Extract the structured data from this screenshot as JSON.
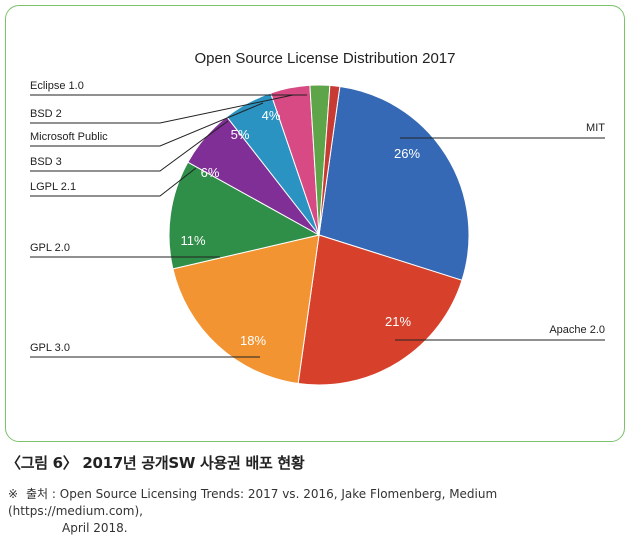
{
  "chart_data": {
    "type": "pie",
    "title": "Open Source License Distribution 2017",
    "slices": [
      {
        "label": "MIT",
        "value": 26,
        "value_label": "26%",
        "color": "#3569b5"
      },
      {
        "label": "Apache 2.0",
        "value": 21,
        "value_label": "21%",
        "color": "#d7412b"
      },
      {
        "label": "GPL 3.0",
        "value": 18,
        "value_label": "18%",
        "color": "#f39433"
      },
      {
        "label": "GPL 2.0",
        "value": 11,
        "value_label": "11%",
        "color": "#2f8e47"
      },
      {
        "label": "LGPL 2.1",
        "value": 6,
        "value_label": "6%",
        "color": "#7f2f96"
      },
      {
        "label": "BSD 3",
        "value": 5,
        "value_label": "5%",
        "color": "#2b93c1"
      },
      {
        "label": "Microsoft Public",
        "value": 4,
        "value_label": "4%",
        "color": "#d74a83"
      },
      {
        "label": "BSD 2",
        "value": 2,
        "value_label": "",
        "color": "#5ea448"
      },
      {
        "label": "Eclipse 1.0",
        "value": 1,
        "value_label": "",
        "color": "#c83b35"
      }
    ]
  },
  "caption": "〈그림 6〉 2017년 공개SW 사용권 배포 현황",
  "source": {
    "mark": "※",
    "label": "출처 :",
    "line1": "Open Source Licensing Trends: 2017 vs. 2016, Jake Flomenberg, Medium (https://medium.com),",
    "line2": "April 2018."
  }
}
